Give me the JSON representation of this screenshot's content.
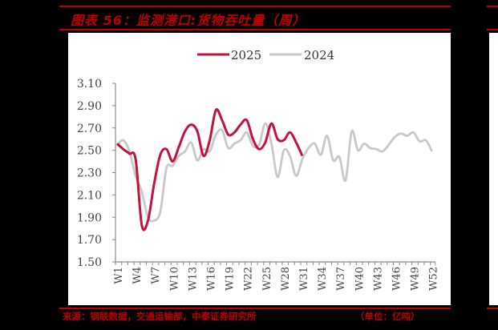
{
  "header": {
    "title": "图表 56：监测港口:货物吞吐量（周）"
  },
  "footer": {
    "source": "来源：钢联数据，交通运输部，中泰证券研究所",
    "unit": "（单位：亿吨）"
  },
  "colors": {
    "accent": "#c00000",
    "series_2025": "#c0143c",
    "series_2024": "#c8c8c8"
  },
  "chart_data": {
    "type": "line",
    "title": "监测港口:货物吞吐量（周）",
    "xlabel": "",
    "ylabel": "",
    "unit": "亿吨",
    "ylim": [
      1.5,
      3.1
    ],
    "yticks": [
      "3.10",
      "2.90",
      "2.70",
      "2.50",
      "2.30",
      "2.10",
      "1.90",
      "1.70",
      "1.50"
    ],
    "xtick_labels": [
      "W1",
      "W4",
      "W7",
      "W10",
      "W13",
      "W16",
      "W19",
      "W22",
      "W25",
      "W28",
      "W31",
      "W34",
      "W37",
      "W40",
      "W43",
      "W46",
      "W49",
      "W52"
    ],
    "legend": [
      "2025",
      "2024"
    ],
    "legend_position": "top",
    "grid": false,
    "x": [
      "W1",
      "W2",
      "W3",
      "W4",
      "W5",
      "W6",
      "W7",
      "W8",
      "W9",
      "W10",
      "W11",
      "W12",
      "W13",
      "W14",
      "W15",
      "W16",
      "W17",
      "W18",
      "W19",
      "W20",
      "W21",
      "W22",
      "W23",
      "W24",
      "W25",
      "W26",
      "W27",
      "W28",
      "W29",
      "W30",
      "W31",
      "W32",
      "W33",
      "W34",
      "W35",
      "W36",
      "W37",
      "W38",
      "W39",
      "W40",
      "W41",
      "W42",
      "W43",
      "W44",
      "W45",
      "W46",
      "W47",
      "W48",
      "W49",
      "W50",
      "W51",
      "W52"
    ],
    "series": [
      {
        "name": "2025",
        "values": [
          2.56,
          2.51,
          2.47,
          2.42,
          1.83,
          1.87,
          2.2,
          2.46,
          2.51,
          2.4,
          2.53,
          2.67,
          2.73,
          2.67,
          2.45,
          2.59,
          2.86,
          2.77,
          2.64,
          2.66,
          2.73,
          2.77,
          2.6,
          2.51,
          2.57,
          2.74,
          2.6,
          2.59,
          2.66,
          2.57,
          2.45
        ]
      },
      {
        "name": "2024",
        "values": [
          2.54,
          2.59,
          2.49,
          2.27,
          2.13,
          1.9,
          1.87,
          1.95,
          2.34,
          2.36,
          2.45,
          2.49,
          2.57,
          2.41,
          2.51,
          2.49,
          2.64,
          2.68,
          2.52,
          2.56,
          2.59,
          2.66,
          2.54,
          2.55,
          2.74,
          2.56,
          2.26,
          2.5,
          2.45,
          2.27,
          2.42,
          2.52,
          2.56,
          2.46,
          2.63,
          2.41,
          2.44,
          2.23,
          2.67,
          2.5,
          2.56,
          2.52,
          2.51,
          2.49,
          2.55,
          2.62,
          2.65,
          2.63,
          2.66,
          2.58,
          2.59,
          2.49
        ]
      }
    ]
  }
}
